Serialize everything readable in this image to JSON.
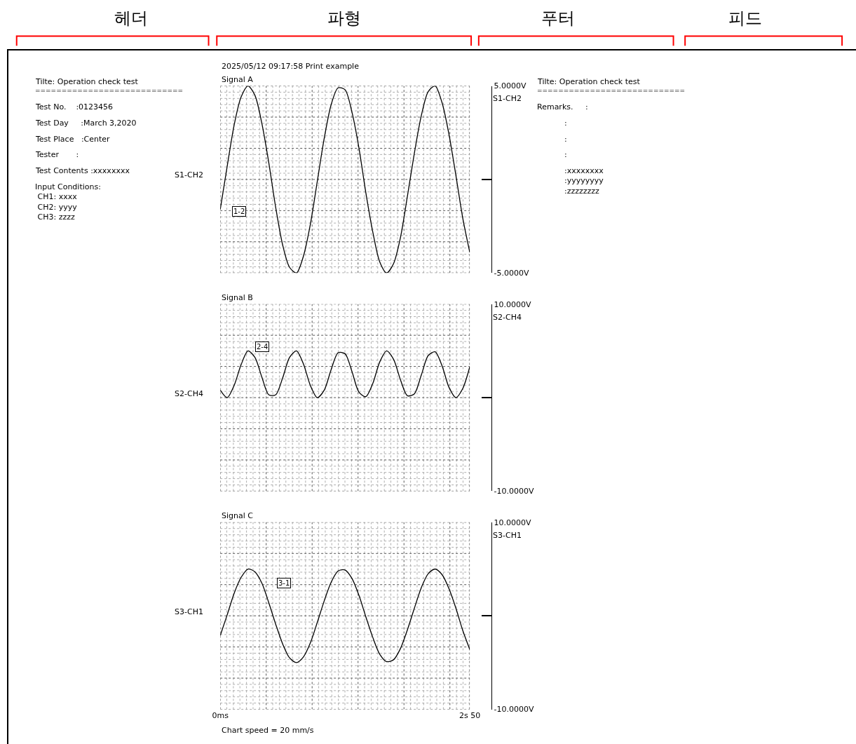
{
  "chart_data": [
    {
      "type": "other",
      "annotations": [
        "헤더",
        "파형",
        "푸터",
        "피드"
      ]
    },
    {
      "type": "other",
      "title": "Tilte: Operation check test",
      "annotations": [
        "============================",
        "Test No.    :0123456",
        "Test Day     :March 3,2020",
        "Test Place   :Center",
        "Tester       :",
        "Test Contents :xxxxxxxx",
        "Input Conditions:\n CH1: xxxx\n CH2: yyyy\n CH3: zzzz"
      ]
    },
    {
      "type": "line",
      "subtitle": "2025/05/12 09:17:58 Print example",
      "title": "Signal A",
      "ylabel": "S1-CH2",
      "categories": [
        null,
        null,
        null,
        null,
        null,
        null,
        null,
        null,
        null,
        null,
        null,
        null,
        null,
        null,
        null,
        null,
        null,
        null,
        null,
        null,
        null,
        null,
        null,
        null,
        null,
        null,
        null,
        null,
        null,
        null,
        null,
        null,
        null,
        null,
        null,
        null,
        null
      ],
      "ylim": [
        -5,
        5
      ],
      "yticks": [
        {
          "value": 5,
          "label": "5.0000V"
        },
        {
          "value": 0,
          "label": null
        },
        {
          "value": -5,
          "label": "-5.0000V"
        }
      ],
      "tick_labels": "y",
      "grid": true,
      "series": [
        {
          "color": "#000000",
          "values": [
            -1.6,
            0.7,
            2.9,
            4.4,
            5.0,
            4.5,
            3.0,
            0.9,
            -1.5,
            -3.5,
            -4.7,
            -5.0,
            -4.1,
            -2.4,
            -0.1,
            2.2,
            4.0,
            4.9,
            4.8,
            3.6,
            1.7,
            -0.7,
            -2.8,
            -4.4,
            -5.0,
            -4.5,
            -3.1,
            -0.9,
            1.4,
            3.4,
            4.7,
            5.0,
            4.1,
            2.4,
            0.2,
            -2.1,
            -3.9
          ]
        }
      ],
      "annotations": [
        "S1-CH2",
        "1-2"
      ]
    },
    {
      "type": "line",
      "title": "Signal B",
      "ylabel": "S2-CH4",
      "categories": [
        null,
        null,
        null,
        null,
        null,
        null,
        null,
        null,
        null,
        null,
        null,
        null,
        null,
        null,
        null,
        null,
        null,
        null,
        null,
        null,
        null,
        null,
        null,
        null,
        null,
        null,
        null,
        null,
        null,
        null,
        null,
        null,
        null,
        null,
        null,
        null,
        null
      ],
      "ylim": [
        -10,
        10
      ],
      "yticks": [
        {
          "value": 10,
          "label": "10.0000V"
        },
        {
          "value": 0,
          "label": null
        },
        {
          "value": -10,
          "label": "-10.0000V"
        }
      ],
      "tick_labels": "y",
      "grid": true,
      "series": [
        {
          "color": "#000000",
          "values": [
            0.8,
            0.0,
            1.3,
            3.5,
            5.0,
            4.3,
            2.2,
            0.3,
            0.3,
            2.1,
            4.3,
            5.0,
            3.6,
            1.3,
            0.0,
            0.8,
            3.0,
            4.8,
            4.7,
            2.8,
            0.6,
            0.1,
            1.5,
            3.8,
            5.0,
            4.1,
            1.9,
            0.2,
            0.4,
            2.4,
            4.5,
            4.9,
            3.4,
            1.1,
            0.0,
            1.0,
            3.3
          ]
        }
      ],
      "annotations": [
        "S2-CH4",
        "2-4"
      ]
    },
    {
      "type": "line",
      "title": "Signal C",
      "ylabel": "S3-CH1",
      "xlabel": "Chart speed = 20 mm/s",
      "categories": [
        "0ms",
        null,
        null,
        null,
        null,
        null,
        null,
        null,
        null,
        null,
        null,
        null,
        null,
        null,
        null,
        null,
        null,
        null,
        null,
        null,
        null,
        null,
        null,
        null,
        null,
        null,
        null,
        null,
        null,
        null,
        null,
        null,
        null,
        null,
        null,
        null,
        "2s 50"
      ],
      "ylim": [
        -10,
        10
      ],
      "yticks": [
        {
          "value": 10,
          "label": "10.0000V"
        },
        {
          "value": 0,
          "label": null
        },
        {
          "value": -10,
          "label": "-10.0000V"
        }
      ],
      "grid": true,
      "series": [
        {
          "color": "#000000",
          "values": [
            -2.1,
            0.1,
            2.4,
            4.1,
            5.0,
            4.7,
            3.5,
            1.4,
            -0.9,
            -3.0,
            -4.5,
            -5.0,
            -4.4,
            -2.9,
            -0.7,
            1.6,
            3.6,
            4.8,
            4.9,
            4.0,
            2.2,
            -0.1,
            -2.3,
            -4.1,
            -4.9,
            -4.7,
            -3.5,
            -1.5,
            0.8,
            3.0,
            4.5,
            5.0,
            4.4,
            2.9,
            0.8,
            -1.6,
            -3.6
          ]
        }
      ],
      "annotations": [
        "S3-CH1",
        "3-1"
      ]
    },
    {
      "type": "other",
      "title": "Tilte: Operation check test",
      "annotations": [
        "============================",
        "Remarks.     :",
        ":",
        ":",
        ":",
        ":xxxxxxxx\n:yyyyyyyy\n:zzzzzzzz"
      ]
    }
  ]
}
